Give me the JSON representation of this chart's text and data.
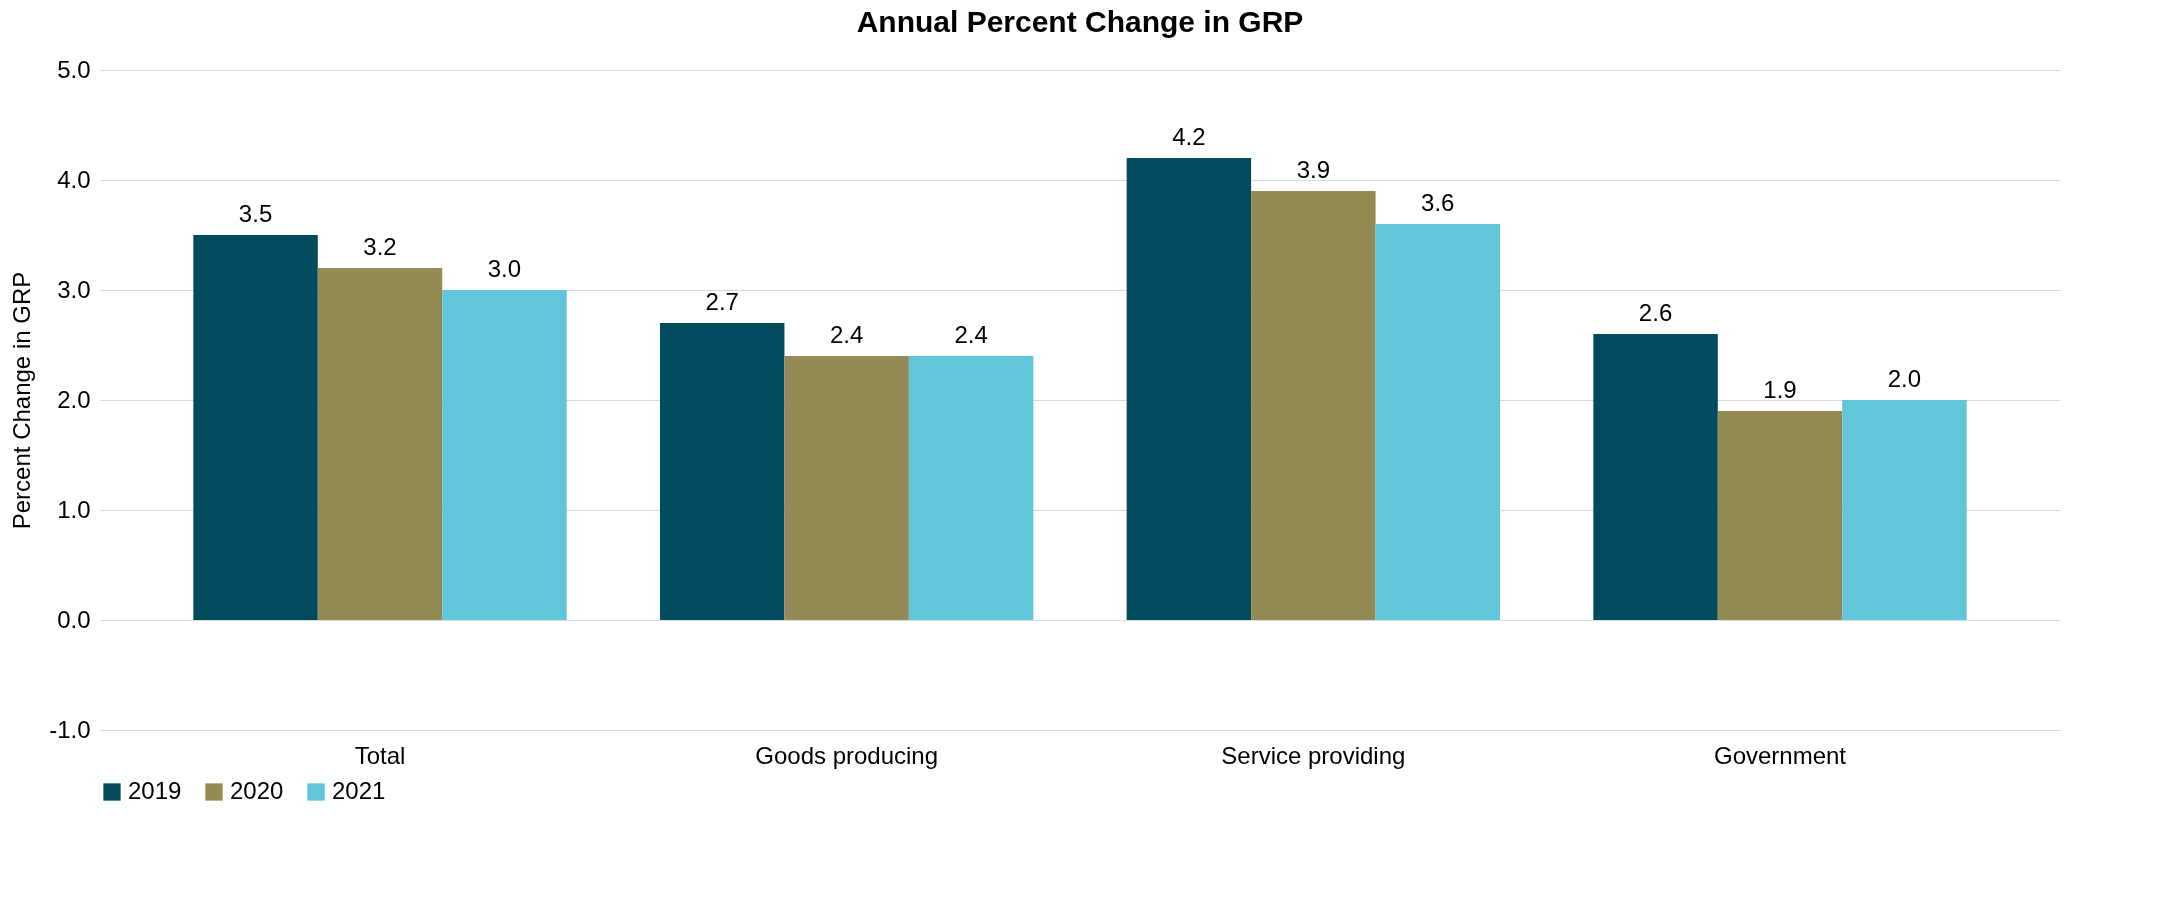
{
  "chart_data": {
    "type": "bar",
    "title": "Annual Percent Change in GRP",
    "ylabel": "Percent Change in GRP",
    "categories": [
      "Total",
      "Goods producing",
      "Service providing",
      "Government"
    ],
    "series": [
      {
        "name": "2019",
        "color": "#004c5e",
        "values": [
          3.5,
          2.7,
          4.2,
          2.6
        ],
        "value_labels": [
          "3.5",
          "2.7",
          "4.2",
          "2.6"
        ]
      },
      {
        "name": "2020",
        "color": "#948b54",
        "values": [
          3.2,
          2.4,
          3.9,
          1.9
        ],
        "value_labels": [
          "3.2",
          "2.4",
          "3.9",
          "1.9"
        ]
      },
      {
        "name": "2021",
        "color": "#62c6da",
        "values": [
          3.0,
          2.4,
          3.6,
          2.0
        ],
        "value_labels": [
          "3.0",
          "2.4",
          "3.6",
          "2.0"
        ]
      }
    ],
    "ylim": [
      -1,
      5
    ],
    "yticks": [
      {
        "value": -1,
        "label": "-1.0"
      },
      {
        "value": 0,
        "label": "0.0"
      },
      {
        "value": 1,
        "label": "1.0"
      },
      {
        "value": 2,
        "label": "2.0"
      },
      {
        "value": 3,
        "label": "3.0"
      },
      {
        "value": 4,
        "label": "4.0"
      },
      {
        "value": 5,
        "label": "5.0"
      }
    ],
    "grid": "y",
    "legend": "bottom"
  }
}
